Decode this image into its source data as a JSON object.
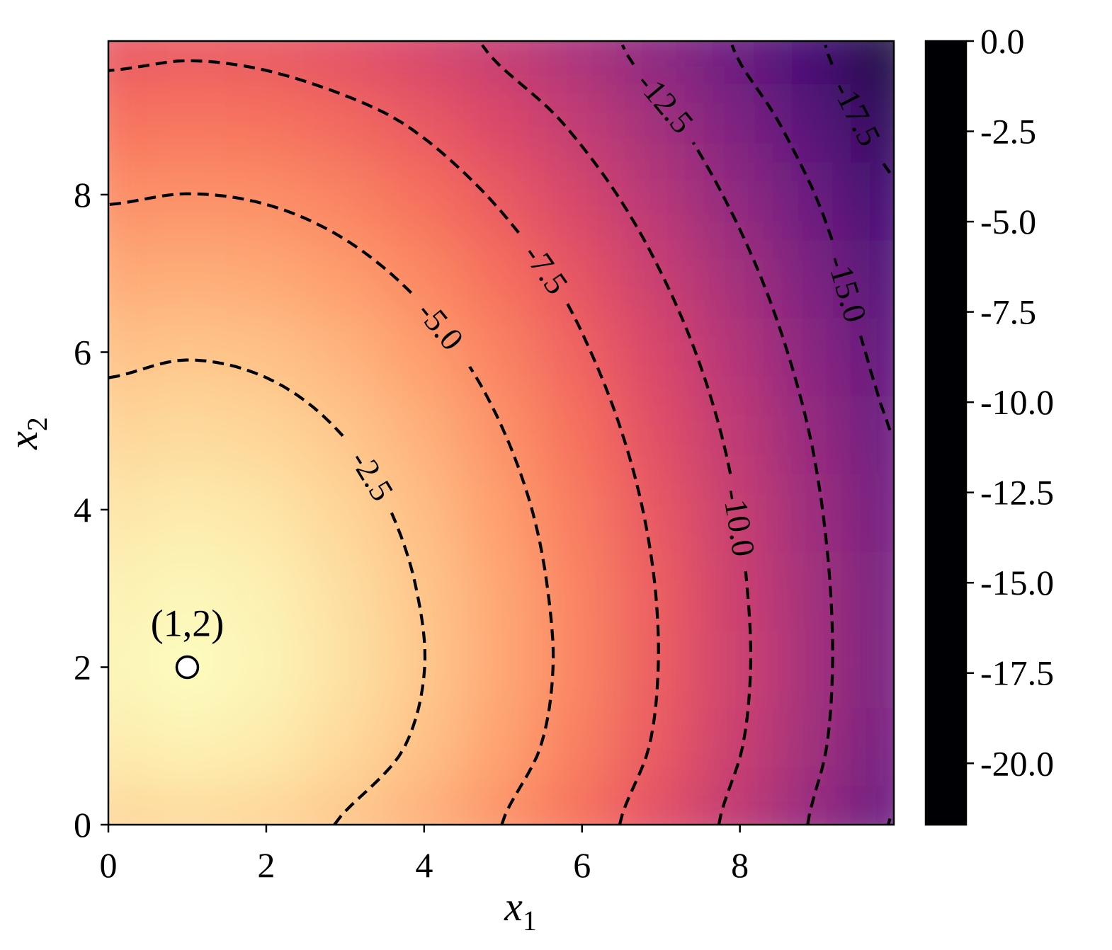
{
  "chart_data": {
    "type": "heatmap",
    "colormap": "magma",
    "x": [
      0,
      0.99,
      1.98,
      2.97,
      3.96,
      4.95,
      5.94,
      6.93,
      7.92,
      8.91,
      9.9
    ],
    "y": [
      0,
      0.99,
      1.98,
      2.97,
      3.96,
      4.95,
      5.94,
      6.93,
      7.92,
      8.91,
      9.9
    ],
    "z": [
      [
        -1.93,
        -1.7,
        -1.92,
        -2.59,
        -3.62,
        -4.95,
        -6.54,
        -8.36,
        -10.4,
        -12.62,
        -15.03
      ],
      [
        -0.87,
        -0.57,
        -0.86,
        -1.63,
        -2.76,
        -4.16,
        -5.8,
        -7.66,
        -9.75,
        -12.01,
        -14.44
      ],
      [
        -0.43,
        0,
        -0.42,
        -1.28,
        -2.44,
        -3.88,
        -5.54,
        -7.43,
        -9.52,
        -11.8,
        -14.24
      ],
      [
        -0.61,
        -0.27,
        -0.6,
        -1.42,
        -2.57,
        -3.99,
        -5.65,
        -7.5,
        -9.61,
        -11.87,
        -14.32
      ],
      [
        -1.11,
        -0.83,
        -1.1,
        -1.85,
        -2.95,
        -4.33,
        -5.95,
        -7.8,
        -9.89,
        -12.14,
        -14.56
      ],
      [
        -1.85,
        -1.6,
        -1.84,
        -2.51,
        -3.54,
        -4.88,
        -6.47,
        -8.29,
        -10.33,
        -12.56,
        -14.97
      ],
      [
        -2.76,
        -2.54,
        -2.75,
        -3.36,
        -4.34,
        -5.62,
        -7.16,
        -8.95,
        -10.96,
        -13.16,
        -15.54
      ],
      [
        -3.84,
        -3.64,
        -3.83,
        -4.4,
        -5.32,
        -6.55,
        -7.99,
        -9.79,
        -11.75,
        -13.91,
        -16.29
      ],
      [
        -5.06,
        -4.88,
        -5.05,
        -5.58,
        -6.46,
        -7.62,
        -9.07,
        -10.78,
        -12.7,
        -14.82,
        -17.15
      ],
      [
        -6.41,
        -6.23,
        -6.4,
        -6.92,
        -7.72,
        -8.87,
        -10.28,
        -11.92,
        -13.79,
        -15.9,
        -18.17
      ],
      [
        -7.88,
        -7.71,
        -7.87,
        -8.37,
        -9.16,
        -10.26,
        -11.6,
        -13.21,
        -15.04,
        -17.09,
        -19.33
      ]
    ],
    "zlim": [
      -21.7,
      0
    ],
    "xlim": [
      0,
      9.95
    ],
    "ylim": [
      0,
      9.95
    ],
    "xticks": [
      0,
      2,
      4,
      6,
      8
    ],
    "yticks": [
      0,
      2,
      4,
      6,
      8
    ],
    "xlabel": {
      "symbol": "x",
      "subscript": "1"
    },
    "ylabel": {
      "symbol": "x",
      "subscript": "2"
    },
    "colorbar_ticks": [
      {
        "value": 0,
        "label": "0.0"
      },
      -2.5,
      {
        "value": -5,
        "label": "-5.0"
      },
      -7.5,
      {
        "value": -10,
        "label": "-10.0"
      },
      -12.5,
      {
        "value": -15,
        "label": "-15.0"
      },
      -17.5,
      {
        "value": -20,
        "label": "-20.0"
      }
    ],
    "contour_levels": [
      -17.5,
      {
        "value": -15,
        "label": "-15.0"
      },
      -12.5,
      {
        "value": -10,
        "label": "-10.0"
      },
      -7.5,
      {
        "value": -5,
        "label": "-5.0"
      },
      -2.5
    ],
    "contour_color": "#000000",
    "contour_linestyle": "dashed",
    "marker": {
      "x": 1,
      "y": 2,
      "label": "(1,2)"
    }
  }
}
